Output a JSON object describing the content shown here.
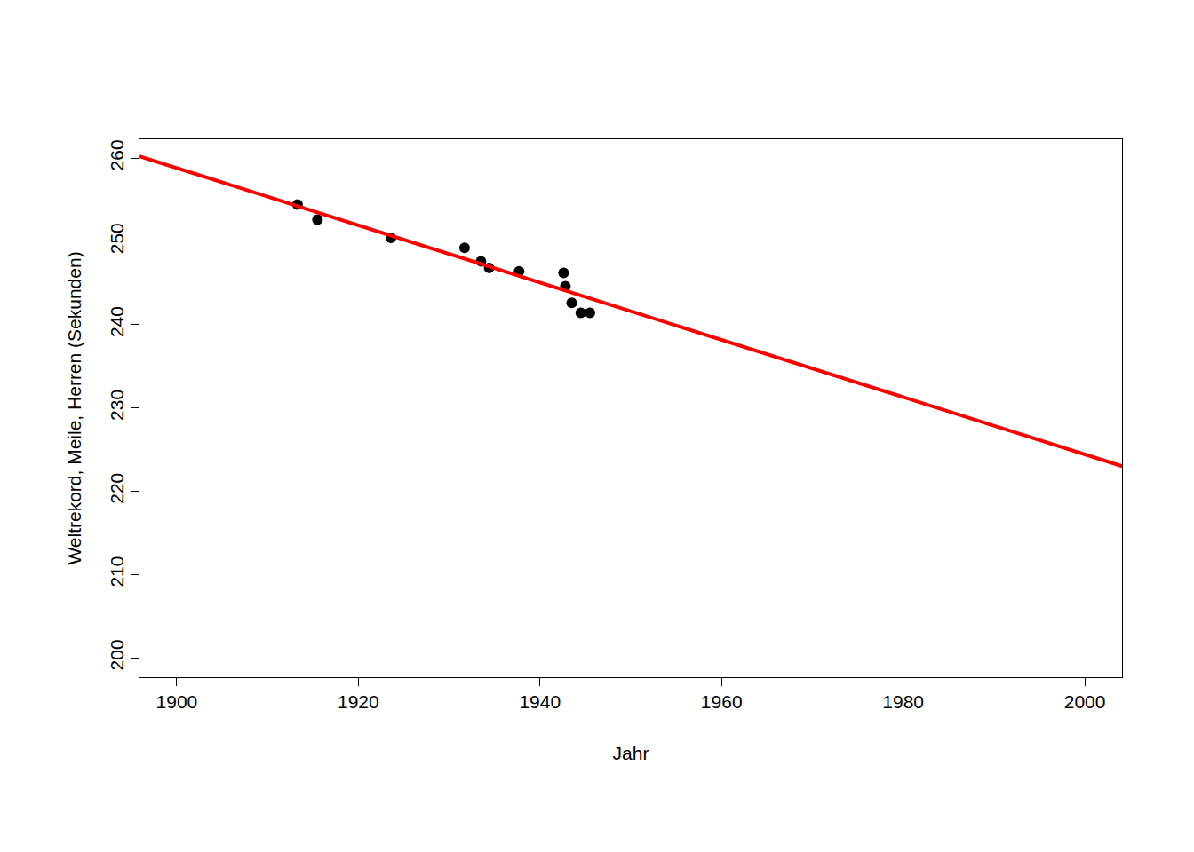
{
  "chart_data": {
    "type": "scatter",
    "x_label": "Jahr",
    "y_label": "Weltrekord, Meile, Herren (Sekunden)",
    "xlim": [
      1895.9,
      2004.1
    ],
    "ylim": [
      197.66,
      262.24
    ],
    "xticks": [
      1900,
      1920,
      1940,
      1960,
      1980,
      2000
    ],
    "yticks": [
      200,
      210,
      220,
      230,
      240,
      250,
      260
    ],
    "grid": false,
    "series": [
      {
        "type": "scatter",
        "color": "#000000",
        "marker": "circle",
        "x": [
          1913.3,
          1915.5,
          1923.6,
          1931.7,
          1933.5,
          1934.4,
          1937.7,
          1942.6,
          1942.8,
          1943.5,
          1944.5,
          1945.5
        ],
        "values": [
          254.4,
          252.6,
          250.4,
          249.2,
          247.6,
          246.8,
          246.4,
          246.2,
          244.6,
          242.6,
          241.4,
          241.4
        ]
      },
      {
        "type": "line",
        "color": "#ff0000",
        "line_style": "solid",
        "x": [
          1895.9,
          2004.1
        ],
        "values": [
          260.2,
          223.0
        ]
      }
    ]
  }
}
